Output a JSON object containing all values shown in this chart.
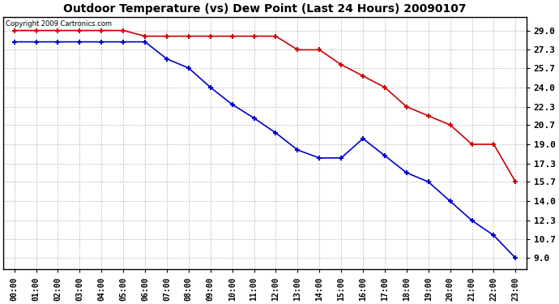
{
  "title": "Outdoor Temperature (vs) Dew Point (Last 24 Hours) 20090107",
  "copyright_text": "Copyright 2009 Cartronics.com",
  "temp_color": "#cc0000",
  "dew_color": "#0000cc",
  "background_color": "#ffffff",
  "grid_color": "#aaaaaa",
  "hours": [
    0,
    1,
    2,
    3,
    4,
    5,
    6,
    7,
    8,
    9,
    10,
    11,
    12,
    13,
    14,
    15,
    16,
    17,
    18,
    19,
    20,
    21,
    22,
    23
  ],
  "temp_values": [
    29.0,
    29.0,
    29.0,
    29.0,
    29.0,
    29.0,
    28.5,
    28.5,
    28.5,
    28.5,
    28.5,
    28.5,
    28.5,
    27.3,
    27.3,
    26.0,
    25.0,
    24.0,
    22.3,
    21.5,
    20.7,
    19.0,
    19.0,
    15.7
  ],
  "dew_values": [
    28.0,
    28.0,
    28.0,
    28.0,
    28.0,
    28.0,
    28.0,
    26.5,
    25.7,
    24.0,
    22.5,
    21.3,
    20.0,
    18.5,
    17.8,
    17.8,
    19.5,
    18.0,
    16.5,
    15.7,
    14.0,
    12.3,
    11.0,
    9.0
  ],
  "yticks": [
    9.0,
    10.7,
    12.3,
    14.0,
    15.7,
    17.3,
    19.0,
    20.7,
    22.3,
    24.0,
    25.7,
    27.3,
    29.0
  ],
  "ylim": [
    8.0,
    30.2
  ],
  "xlim": [
    -0.5,
    23.5
  ],
  "figsize": [
    6.9,
    3.75
  ],
  "dpi": 100
}
